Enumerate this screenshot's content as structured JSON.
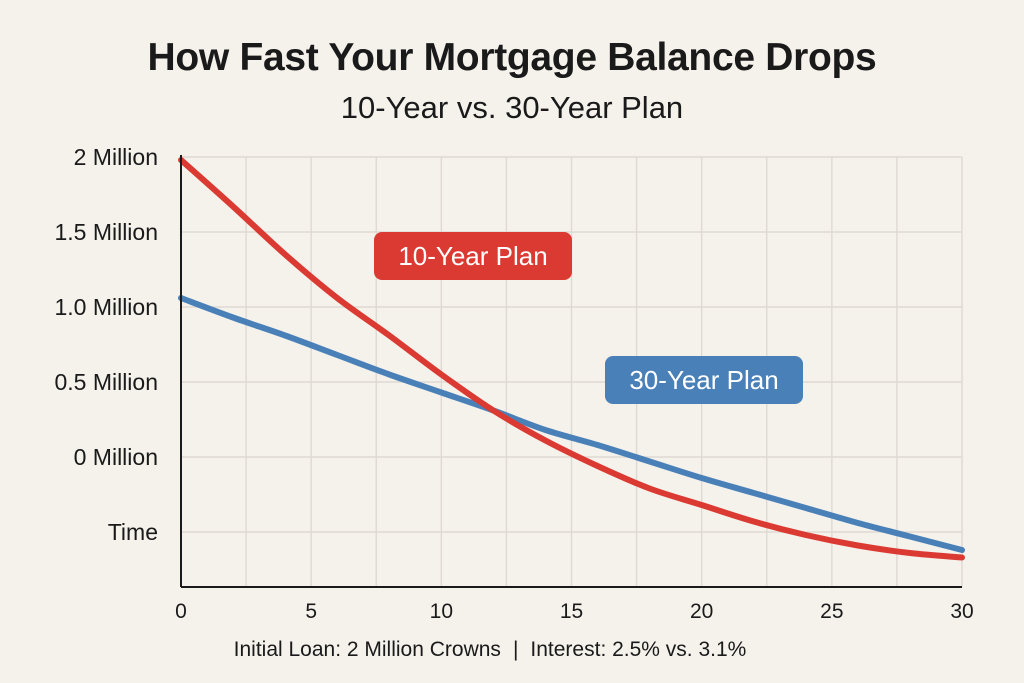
{
  "chart_data": {
    "type": "line",
    "title": "How Fast Your Mortgage Balance Drops",
    "subtitle": "10-Year vs. 30-Year Plan",
    "x_ticks": [
      0,
      5,
      10,
      15,
      20,
      25,
      30
    ],
    "y_tick_labels": [
      "2 Million",
      "1.5 Million",
      "1.0 Million",
      "0.5 Million",
      "0 Million",
      "Time"
    ],
    "xlim": [
      0,
      30
    ],
    "grid": true,
    "series": [
      {
        "name": "10-Year Plan",
        "color": "#db3a33",
        "x": [
          0,
          2,
          4,
          6,
          8,
          10,
          12,
          14,
          16,
          18,
          20,
          22,
          24,
          26,
          28,
          30
        ],
        "y": [
          1.98,
          1.67,
          1.35,
          1.06,
          0.81,
          0.55,
          0.31,
          0.11,
          -0.06,
          -0.21,
          -0.32,
          -0.43,
          -0.52,
          -0.59,
          -0.64,
          -0.67
        ]
      },
      {
        "name": "30-Year Plan",
        "color": "#4a80b8",
        "x": [
          0,
          2,
          4,
          6,
          8,
          10,
          12,
          14,
          16,
          18,
          20,
          22,
          24,
          26,
          28,
          30
        ],
        "y": [
          1.06,
          0.93,
          0.81,
          0.68,
          0.55,
          0.43,
          0.31,
          0.18,
          0.08,
          -0.03,
          -0.14,
          -0.24,
          -0.34,
          -0.44,
          -0.53,
          -0.62
        ]
      }
    ]
  },
  "footer": {
    "loan": "Initial Loan: 2 Million Crowns",
    "separator": "|",
    "interest": "Interest: 2.5% vs. 3.1%"
  }
}
